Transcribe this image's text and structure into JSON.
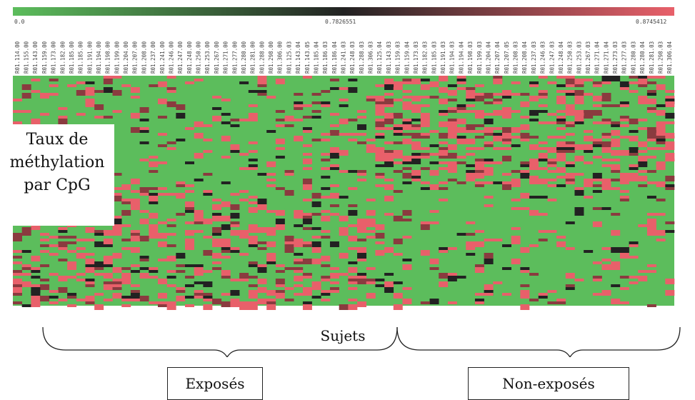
{
  "chart_data": {
    "type": "heatmap",
    "color_scale": {
      "min_label": "0.0",
      "mid_label": "0.7826551",
      "max_label": "0.8745412",
      "colors": [
        "#5cbd5c",
        "#222222",
        "#e8606a"
      ]
    },
    "columns": [
      "R01.114.00",
      "R01.155.00",
      "R01.143.00",
      "R01.159.00",
      "R01.173.00",
      "R01.182.00",
      "R01.185.00",
      "R01.185.00",
      "R01.191.00",
      "R01.194.00",
      "R01.198.00",
      "R01.199.00",
      "R01.204.00",
      "R01.207.00",
      "R01.208.00",
      "R01.237.00",
      "R01.241.00",
      "R01.246.00",
      "R01.247.00",
      "R01.248.00",
      "R01.250.00",
      "R01.253.00",
      "R01.267.00",
      "R01.271.00",
      "R01.277.00",
      "R01.280.00",
      "R01.281.00",
      "R01.288.00",
      "R01.298.00",
      "R01.306.00",
      "R01.125.03",
      "R01.143.04",
      "R01.143.05",
      "R01.185.04",
      "R01.186.03",
      "R01.186.04",
      "R01.241.03",
      "R01.248.03",
      "R01.288.03",
      "R01.306.03",
      "R01.125.04",
      "R01.143.03",
      "R01.159.03",
      "R01.159.04",
      "R01.173.03",
      "R01.182.03",
      "R01.185.03",
      "R01.191.03",
      "R01.194.03",
      "R01.194.04",
      "R01.198.03",
      "R01.199.03",
      "R01.204.04",
      "R01.207.04",
      "R01.207.05",
      "R01.208.03",
      "R01.208.04",
      "R01.237.03",
      "R01.246.03",
      "R01.247.03",
      "R01.248.04",
      "R01.250.03",
      "R01.253.03",
      "R01.267.03",
      "R01.271.04",
      "R01.271.04",
      "R01.273.03",
      "R01.277.03",
      "R01.280.03",
      "R01.280.04",
      "R01.281.03",
      "R01.298.03",
      "R01.306.04"
    ],
    "row_label_lines": [
      "Taux de",
      "méthylation",
      "par CpG"
    ],
    "x_group_label": "Sujets",
    "groups": [
      "Exposés",
      "Non-exposés"
    ]
  }
}
